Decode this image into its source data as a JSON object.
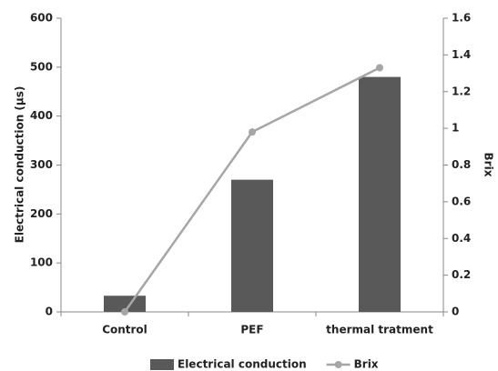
{
  "chart_data": {
    "type": "bar",
    "categories": [
      "Control",
      "PEF",
      "thermal tratment"
    ],
    "series": [
      {
        "name": "Electrical conduction",
        "color": "#595959",
        "values": [
          33,
          270,
          480
        ]
      },
      {
        "name": "Brix",
        "color": "#a6a6a6",
        "type": "line",
        "axis": "y2",
        "values": [
          0,
          0.98,
          1.33
        ]
      }
    ],
    "ylabel": "Electrical conduction (µs)",
    "y2label": "Brix",
    "ylim": [
      0,
      600
    ],
    "yticks": [
      0,
      100,
      200,
      300,
      400,
      500,
      600
    ],
    "y2lim": [
      0,
      1.6
    ],
    "y2ticks": [
      0,
      0.2,
      0.4,
      0.6,
      0.8,
      1,
      1.2,
      1.4,
      1.6
    ],
    "grid": false,
    "legend": "bottom"
  }
}
